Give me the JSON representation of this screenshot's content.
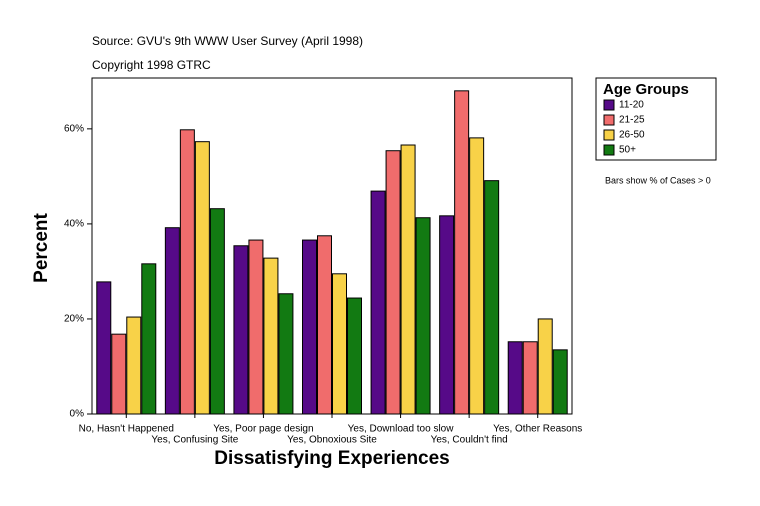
{
  "chart_data": {
    "type": "bar",
    "source": "Source: GVU's 9th WWW User Survey (April 1998)",
    "copyright": "Copyright 1998 GTRC",
    "note": "Bars show % of Cases > 0",
    "x_label": "Dissatisfying Experiences",
    "y_label": "Percent",
    "legend_title": "Age Groups",
    "categories": [
      "No, Hasn't Happened",
      "Yes, Confusing Site",
      "Yes, Poor page design",
      "Yes, Obnoxious Site",
      "Yes, Download too slow",
      "Yes, Couldn't find",
      "Yes, Other Reasons"
    ],
    "series": [
      {
        "name": "11-20",
        "color": "#560a88",
        "values": [
          27.8,
          39.2,
          35.4,
          36.6,
          46.9,
          41.7,
          15.2
        ]
      },
      {
        "name": "21-25",
        "color": "#f06c6c",
        "values": [
          16.8,
          59.8,
          36.6,
          37.5,
          55.4,
          68.0,
          15.2
        ]
      },
      {
        "name": "26-50",
        "color": "#f8d248",
        "values": [
          20.4,
          57.3,
          32.8,
          29.5,
          56.6,
          58.1,
          20.0
        ]
      },
      {
        "name": "50+",
        "color": "#127a12",
        "values": [
          31.6,
          43.2,
          25.3,
          24.4,
          41.3,
          49.1,
          13.5
        ]
      }
    ],
    "ylim": [
      0,
      70.7
    ],
    "yticks": [
      {
        "value": 0,
        "label": "0%"
      },
      {
        "value": 20,
        "label": "20%"
      },
      {
        "value": 40,
        "label": "40%"
      },
      {
        "value": 60,
        "label": "60%"
      }
    ]
  }
}
